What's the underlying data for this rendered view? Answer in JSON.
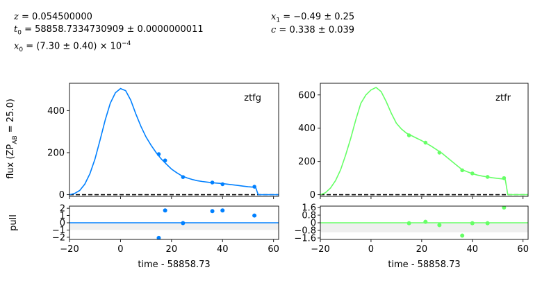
{
  "params": {
    "z": "0.054500000",
    "t0": "58858.7334730909 ± 0.0000000011",
    "x0": "(7.30 ± 0.40) × 10",
    "x0_exp": "−4",
    "x1": "−0.49 ± 0.25",
    "c": "0.338 ± 0.039"
  },
  "labels": {
    "flux_ylabel": "flux (ZP",
    "flux_ylabel_sub": "AB",
    "flux_ylabel_tail": " = 25.0)",
    "pull_ylabel": "pull",
    "xlabel": "time - 58858.73"
  },
  "chart_data": [
    {
      "type": "line",
      "band": "ztfg",
      "color": "#0080ff",
      "x_ticks": [
        -20,
        0,
        20,
        40,
        60
      ],
      "xlim": [
        -20,
        62
      ],
      "ylim": [
        -8,
        530
      ],
      "y_ticks": [
        0,
        200,
        400
      ],
      "model": {
        "x": [
          -20,
          -18,
          -16,
          -14,
          -12,
          -10,
          -8,
          -6,
          -4,
          -2,
          0,
          2,
          4,
          6,
          8,
          10,
          12,
          14,
          16,
          18,
          20,
          22,
          24,
          26,
          28,
          30,
          32,
          34,
          36,
          38,
          40,
          42,
          44,
          46,
          48,
          50,
          52,
          53,
          54,
          56,
          60,
          62
        ],
        "y": [
          0,
          6,
          20,
          50,
          100,
          170,
          260,
          355,
          435,
          485,
          505,
          495,
          450,
          385,
          325,
          275,
          235,
          200,
          170,
          145,
          122,
          105,
          90,
          80,
          73,
          67,
          63,
          60,
          57,
          55,
          53,
          50,
          47,
          44,
          41,
          38,
          36,
          34,
          0,
          0,
          0,
          0
        ]
      },
      "points": {
        "x": [
          15,
          17.5,
          24.5,
          36,
          40,
          52.5
        ],
        "y": [
          193,
          163,
          84,
          58,
          50,
          38
        ],
        "yerr": [
          8,
          8,
          8,
          7,
          7,
          6
        ]
      },
      "pull": {
        "ylim": [
          -2.3,
          2.3
        ],
        "y_ticks": [
          -2,
          -1,
          0,
          1,
          2
        ],
        "x": [
          15,
          17.5,
          24.5,
          36,
          40,
          52.5
        ],
        "y": [
          -2.1,
          1.7,
          -0.05,
          1.6,
          1.7,
          1.0
        ]
      }
    },
    {
      "type": "line",
      "band": "ztfr",
      "color": "#66ff66",
      "x_ticks": [
        -20,
        0,
        20,
        40,
        60
      ],
      "xlim": [
        -20,
        62
      ],
      "ylim": [
        -10,
        670
      ],
      "y_ticks": [
        0,
        200,
        400,
        600
      ],
      "model": {
        "x": [
          -20,
          -18,
          -16,
          -14,
          -12,
          -10,
          -8,
          -6,
          -4,
          -2,
          0,
          2,
          4,
          6,
          8,
          10,
          12,
          14,
          16,
          18,
          20,
          22,
          24,
          26,
          28,
          30,
          32,
          34,
          36,
          38,
          40,
          42,
          44,
          46,
          48,
          50,
          52,
          53,
          54,
          56,
          60,
          62
        ],
        "y": [
          0,
          12,
          40,
          85,
          150,
          240,
          340,
          450,
          550,
          600,
          630,
          645,
          620,
          560,
          490,
          430,
          395,
          370,
          355,
          340,
          325,
          308,
          290,
          270,
          250,
          225,
          200,
          175,
          150,
          138,
          127,
          118,
          112,
          107,
          102,
          98,
          95,
          90,
          0,
          0,
          0,
          0
        ]
      },
      "points": {
        "x": [
          15,
          21.5,
          27,
          36,
          40,
          46,
          52.5
        ],
        "y": [
          357,
          313,
          253,
          147,
          128,
          107,
          100
        ],
        "yerr": [
          8,
          8,
          8,
          8,
          8,
          8,
          8
        ]
      },
      "pull": {
        "ylim": [
          -1.75,
          1.75
        ],
        "y_ticks": [
          -1.6,
          -0.8,
          0.0,
          0.8,
          1.6
        ],
        "x": [
          15,
          21.5,
          27,
          36,
          40,
          46,
          52.5
        ],
        "y": [
          -0.05,
          0.1,
          -0.25,
          -1.35,
          -0.05,
          -0.05,
          1.6
        ]
      }
    }
  ]
}
